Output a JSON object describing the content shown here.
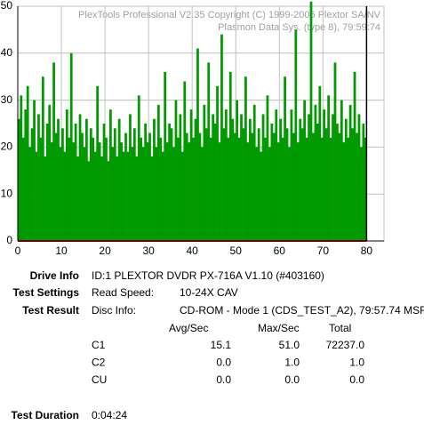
{
  "chart_data": {
    "type": "bar",
    "header": [
      "PlexTools Professional V2.35 Copyright (C) 1999-2006 Plextor SA/NV",
      "Plasmon Data Sys. (type 8), 79:59:74"
    ],
    "color": "#009900",
    "grid": true,
    "xlim": [
      0,
      84
    ],
    "ylim": [
      0,
      50
    ],
    "xticks": [
      0,
      10,
      20,
      30,
      40,
      50,
      60,
      70,
      80
    ],
    "yticks": [
      0,
      10,
      20,
      30,
      40,
      50
    ],
    "x": [
      0,
      0.5,
      1,
      1.5,
      2,
      2.5,
      3,
      3.5,
      4,
      4.5,
      5,
      5.5,
      6,
      6.5,
      7,
      7.5,
      8,
      8.5,
      9,
      9.5,
      10,
      10.5,
      11,
      11.5,
      12,
      12.5,
      13,
      13.5,
      14,
      14.5,
      15,
      15.5,
      16,
      16.5,
      17,
      17.5,
      18,
      18.5,
      19,
      19.5,
      20,
      20.5,
      21,
      21.5,
      22,
      22.5,
      23,
      23.5,
      24,
      24.5,
      25,
      25.5,
      26,
      26.5,
      27,
      27.5,
      28,
      28.5,
      29,
      29.5,
      30,
      30.5,
      31,
      31.5,
      32,
      32.5,
      33,
      33.5,
      34,
      34.5,
      35,
      35.5,
      36,
      36.5,
      37,
      37.5,
      38,
      38.5,
      39,
      39.5,
      40,
      40.5,
      41,
      41.5,
      42,
      42.5,
      43,
      43.5,
      44,
      44.5,
      45,
      45.5,
      46,
      46.5,
      47,
      47.5,
      48,
      48.5,
      49,
      49.5,
      50,
      50.5,
      51,
      51.5,
      52,
      52.5,
      53,
      53.5,
      54,
      54.5,
      55,
      55.5,
      56,
      56.5,
      57,
      57.5,
      58,
      58.5,
      59,
      59.5,
      60,
      60.5,
      61,
      61.5,
      62,
      62.5,
      63,
      63.5,
      64,
      64.5,
      65,
      65.5,
      66,
      66.5,
      67,
      67.5,
      68,
      68.5,
      69,
      69.5,
      70,
      70.5,
      71,
      71.5,
      72,
      72.5,
      73,
      73.5,
      74,
      74.5,
      75,
      75.5,
      76,
      76.5,
      77,
      77.5,
      78,
      78.5,
      79,
      79.5
    ],
    "values": [
      26,
      31,
      22,
      28,
      33,
      20,
      24,
      30,
      19,
      27,
      22,
      35,
      18,
      25,
      29,
      21,
      38,
      23,
      26,
      20,
      24,
      19,
      28,
      22,
      40,
      21,
      25,
      18,
      27,
      23,
      20,
      26,
      17,
      24,
      22,
      19,
      33,
      21,
      18,
      25,
      22,
      17,
      28,
      20,
      24,
      18,
      26,
      21,
      19,
      23,
      19,
      27,
      20,
      24,
      18,
      31,
      22,
      20,
      25,
      21,
      23,
      18,
      26,
      20,
      29,
      22,
      19,
      36,
      21,
      25,
      24,
      20,
      30,
      22,
      27,
      19,
      34,
      23,
      21,
      28,
      22,
      26,
      41,
      23,
      20,
      29,
      24,
      38,
      22,
      27,
      25,
      33,
      21,
      44,
      24,
      28,
      22,
      36,
      26,
      23,
      30,
      22,
      27,
      24,
      35,
      21,
      26,
      23,
      29,
      20,
      24,
      19,
      27,
      22,
      31,
      20,
      25,
      23,
      28,
      21,
      26,
      22,
      35,
      24,
      20,
      28,
      23,
      45,
      21,
      26,
      24,
      30,
      22,
      27,
      51,
      23,
      29,
      25,
      33,
      22,
      28,
      24,
      31,
      22,
      27,
      38,
      25,
      23,
      30,
      21,
      26,
      22,
      29,
      24,
      36,
      23,
      27,
      20,
      25,
      22
    ]
  },
  "info": {
    "drive_info_label": "Drive Info",
    "drive_info": "ID:1 PLEXTOR DVDR PX-716A V1.10 (#403160)",
    "test_settings_label": "Test Settings",
    "read_speed_label": "Read Speed:",
    "read_speed": "10-24X CAV",
    "test_result_label": "Test Result",
    "disc_info_label": "Disc Info:",
    "disc_info": "CD-ROM - Mode 1 (CDS_TEST_A2), 79:57.74 MSF",
    "columns": [
      "Avg/Sec",
      "Max/Sec",
      "Total"
    ],
    "rows": [
      [
        "C1",
        "15.1",
        "51.0",
        "72237.0"
      ],
      [
        "C2",
        "0.0",
        "1.0",
        "1.0"
      ],
      [
        "CU",
        "0.0",
        "0.0",
        "0.0"
      ]
    ],
    "duration_label": "Test Duration",
    "duration": "0:04:24"
  }
}
